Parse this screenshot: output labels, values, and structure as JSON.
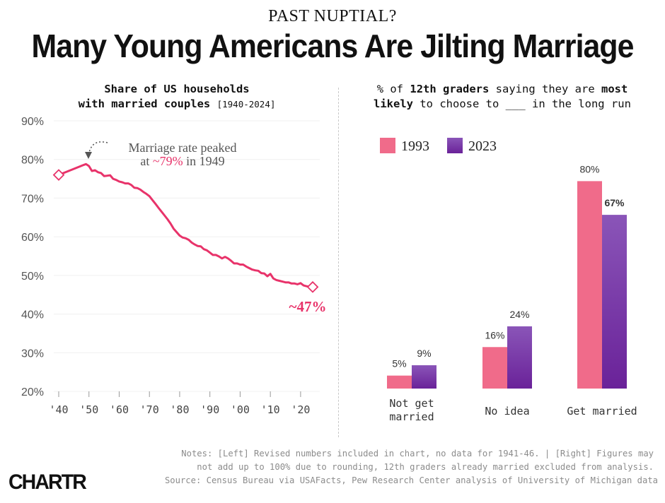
{
  "header": {
    "kicker": "PAST NUPTIAL?",
    "headline": "Many Young Americans Are Jilting Marriage"
  },
  "left_panel": {
    "title_line1": "Share of US households",
    "title_line2_bold": "with married couples",
    "title_line2_small": "[1940-2024]",
    "annotation_line1": "Marriage rate peaked",
    "annotation_line2_prefix": "at ",
    "annotation_line2_highlight": "~79%",
    "annotation_line2_suffix": " in 1949",
    "end_label": "~47%"
  },
  "right_panel": {
    "title_pre": "% of ",
    "title_bold1": "12th graders",
    "title_mid": " saying they are ",
    "title_bold2": "most",
    "title_bold3": "likely",
    "title_post": " to choose to ___ in the long run",
    "legend": [
      "1993",
      "2023"
    ]
  },
  "colors": {
    "line": "#e8336a",
    "bar_1993": "#f06b8a",
    "bar_2023_top": "#8a55b8",
    "bar_2023_bottom": "#6a2299",
    "grid": "#f0f0f0",
    "muted": "#8c8c8c"
  },
  "footer": {
    "notes_line1": "Notes: [Left] Revised numbers included in chart, no data for 1941-46. | [Right] Figures may",
    "notes_line2": "not add up to 100% due to rounding, 12th graders already married excluded from analysis.",
    "source": "Source: Census Bureau via USAFacts, Pew Research Center analysis of University of Michigan data",
    "logo": "CHARTR"
  },
  "chart_data": [
    {
      "type": "line",
      "title": "Share of US households with married couples [1940-2024]",
      "xlabel": "",
      "ylabel": "",
      "ylim": [
        20,
        90
      ],
      "xlim": [
        1940,
        2024
      ],
      "y_ticks": [
        "90%",
        "80%",
        "70%",
        "60%",
        "50%",
        "40%",
        "30%",
        "20%"
      ],
      "x_ticks": [
        "'40",
        "'50",
        "'60",
        "'70",
        "'80",
        "'90",
        "'00",
        "'10",
        "'20"
      ],
      "grid": true,
      "series": [
        {
          "x": [
            1940,
            1947,
            1948,
            1949,
            1950,
            1951,
            1952,
            1953,
            1954,
            1955,
            1956,
            1957,
            1958,
            1959,
            1960,
            1961,
            1962,
            1963,
            1964,
            1965,
            1966,
            1967,
            1968,
            1969,
            1970,
            1971,
            1972,
            1973,
            1974,
            1975,
            1976,
            1977,
            1978,
            1979,
            1980,
            1981,
            1982,
            1983,
            1984,
            1985,
            1986,
            1987,
            1988,
            1989,
            1990,
            1991,
            1992,
            1993,
            1994,
            1995,
            1996,
            1997,
            1998,
            1999,
            2000,
            2001,
            2002,
            2003,
            2004,
            2005,
            2006,
            2007,
            2008,
            2009,
            2010,
            2011,
            2012,
            2013,
            2014,
            2015,
            2016,
            2017,
            2018,
            2019,
            2020,
            2021,
            2022,
            2023,
            2024
          ],
          "values": [
            76,
            78.2,
            78.5,
            78.8,
            78.3,
            77,
            77.2,
            76.7,
            76.5,
            75.7,
            75.8,
            75.9,
            75,
            74.7,
            74.3,
            74.1,
            73.8,
            73.8,
            73.4,
            72.7,
            72.6,
            72.2,
            71.6,
            71.1,
            70.5,
            69.5,
            68.5,
            67.5,
            66.5,
            65.5,
            64.5,
            63.4,
            62.1,
            61.2,
            60.3,
            59.8,
            59.6,
            59.2,
            58.5,
            58,
            57.6,
            57.5,
            56.8,
            56.5,
            55.9,
            55.3,
            55.3,
            54.9,
            54.4,
            54.8,
            54.4,
            53.8,
            53.1,
            53.1,
            52.8,
            52.8,
            52.3,
            51.9,
            51.5,
            51.3,
            51.2,
            50.6,
            50.5,
            49.8,
            50.4,
            49.2,
            48.8,
            48.6,
            48.4,
            48.2,
            48.2,
            47.9,
            47.9,
            47.7,
            48,
            47.4,
            47.2,
            47.1,
            47
          ]
        }
      ],
      "annotations": [
        {
          "text": "Marriage rate peaked at ~79% in 1949",
          "x": 1949,
          "y": 79
        },
        {
          "text": "~47%",
          "x": 2024,
          "y": 47
        }
      ]
    },
    {
      "type": "bar",
      "title": "% of 12th graders saying they are most likely to choose to ___ in the long run",
      "categories": [
        "Not get married",
        "No idea",
        "Get married"
      ],
      "category_lines": [
        [
          "Not get",
          "married"
        ],
        [
          "No idea"
        ],
        [
          "Get married"
        ]
      ],
      "series": [
        {
          "name": "1993",
          "values": [
            5,
            16,
            80
          ],
          "labels": [
            "5%",
            "16%",
            "80%"
          ]
        },
        {
          "name": "2023",
          "values": [
            9,
            24,
            67
          ],
          "labels": [
            "9%",
            "24%",
            "67%"
          ]
        }
      ],
      "ylim": [
        0,
        100
      ],
      "legend": "top-left",
      "grid": false
    }
  ]
}
